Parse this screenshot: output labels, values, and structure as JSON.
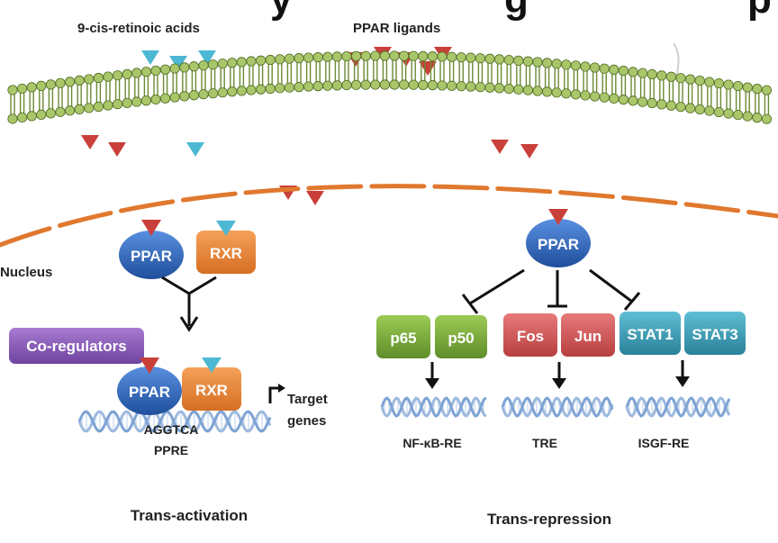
{
  "title_fragment": "y    g    p",
  "labels": {
    "retinoic": "9-cis-retinoic acids",
    "ppar_ligands": "PPAR ligands",
    "nucleus": "Nucleus",
    "target_genes_1": "Target",
    "target_genes_2": "genes",
    "ppre_seq": "AGGTCA",
    "ppre": "PPRE",
    "nfkb_re": "NF-κB-RE",
    "tre": "TRE",
    "isgf_re": "ISGF-RE",
    "trans_activation": "Trans-activation",
    "trans_repression": "Trans-repression"
  },
  "proteins": {
    "ppar_left": "PPAR",
    "rxr_left": "RXR",
    "coregulators": "Co-regulators",
    "ppar_bound": "PPAR",
    "rxr_bound": "RXR",
    "ppar_right": "PPAR",
    "p65": "p65",
    "p50": "p50",
    "fos": "Fos",
    "jun": "Jun",
    "stat1": "STAT1",
    "stat3": "STAT3"
  },
  "colors": {
    "ppar_blue": "#2b63b8",
    "rxr_orange": "#e8863a",
    "coreg_purple": "#8a5bb5",
    "green_box": "#7aa83a",
    "red_box": "#d4595a",
    "teal_box": "#3d9db3",
    "ligand_red": "#c9403a",
    "ligand_blue": "#4cb8d4",
    "membrane_green": "#a9c76a",
    "nucleus_orange": "#e0782e",
    "dna_blue": "#9db9de"
  }
}
